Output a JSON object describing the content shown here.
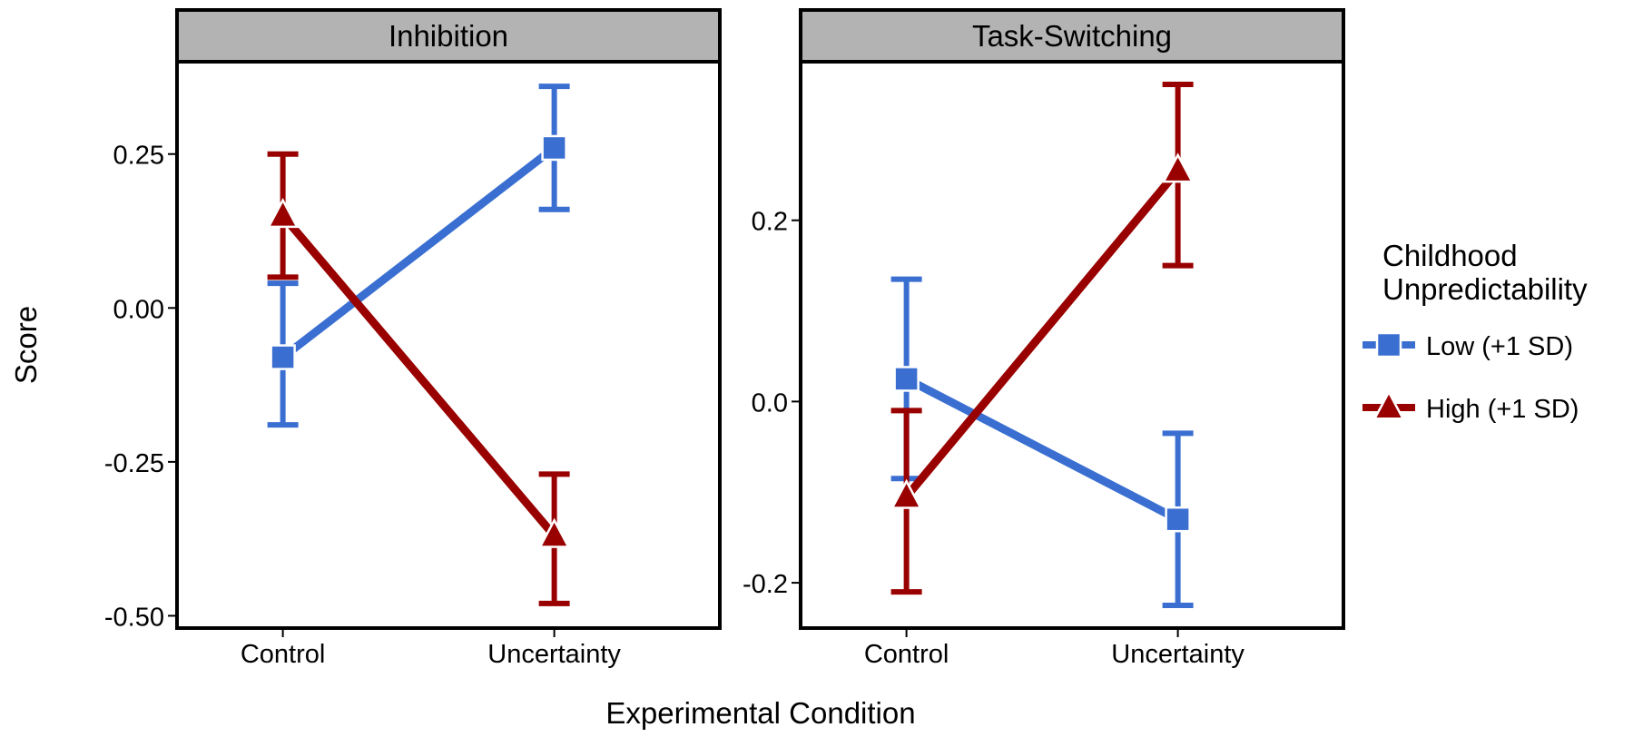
{
  "chart_data": {
    "type": "line",
    "xlabel": "Experimental Condition",
    "ylabel": "Score",
    "legend": {
      "title_lines": [
        "Childhood",
        "Unpredictability"
      ],
      "placement": "right"
    },
    "categories": [
      "Control",
      "Uncertainty"
    ],
    "series_style": [
      {
        "key": "low",
        "name": "Low (+1 SD)",
        "color": "#3a6fd1",
        "marker": "square"
      },
      {
        "key": "high",
        "name": "High (+1 SD)",
        "color": "#990000",
        "marker": "triangle"
      }
    ],
    "panels": [
      {
        "title": "Inhibition",
        "ylim": [
          -0.52,
          0.4
        ],
        "yticks": [
          0.25,
          0.0,
          -0.25,
          -0.5
        ],
        "ytick_labels": [
          "0.25",
          "0.00",
          "-0.25",
          "-0.50"
        ],
        "series": [
          {
            "key": "low",
            "values": [
              -0.08,
              0.26
            ],
            "lower": [
              -0.19,
              0.16
            ],
            "upper": [
              0.04,
              0.36
            ]
          },
          {
            "key": "high",
            "values": [
              0.15,
              -0.37
            ],
            "lower": [
              0.05,
              -0.48
            ],
            "upper": [
              0.25,
              -0.27
            ]
          }
        ]
      },
      {
        "title": "Task-Switching",
        "ylim": [
          -0.25,
          0.375
        ],
        "yticks": [
          0.2,
          0.0,
          -0.2
        ],
        "ytick_labels": [
          "0.2",
          "0.0",
          "-0.2"
        ],
        "series": [
          {
            "key": "low",
            "values": [
              0.025,
              -0.13
            ],
            "lower": [
              -0.085,
              -0.225
            ],
            "upper": [
              0.135,
              -0.035
            ]
          },
          {
            "key": "high",
            "values": [
              -0.105,
              0.255
            ],
            "lower": [
              -0.21,
              0.15
            ],
            "upper": [
              -0.01,
              0.35
            ]
          }
        ]
      }
    ]
  }
}
